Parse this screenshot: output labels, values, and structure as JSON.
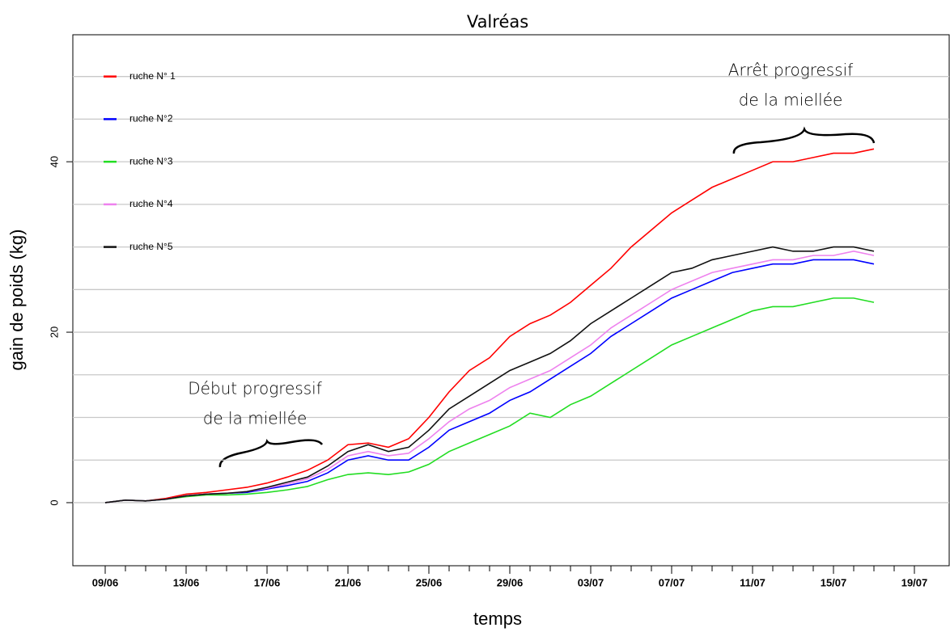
{
  "chart_data": {
    "type": "line",
    "title": "Valréas",
    "x_label": "temps",
    "y_label": "gain de poids (kg)",
    "x": [
      "09/06",
      "10/06",
      "11/06",
      "12/06",
      "13/06",
      "14/06",
      "15/06",
      "16/06",
      "17/06",
      "18/06",
      "19/06",
      "20/06",
      "21/06",
      "22/06",
      "23/06",
      "24/06",
      "25/06",
      "26/06",
      "27/06",
      "28/06",
      "29/06",
      "30/06",
      "01/07",
      "02/07",
      "03/07",
      "04/07",
      "05/07",
      "06/07",
      "07/07",
      "08/07",
      "09/07",
      "10/07",
      "11/07",
      "12/07",
      "13/07",
      "14/07",
      "15/07",
      "16/07",
      "17/07",
      "18/07",
      "19/07"
    ],
    "xticks": [
      "09/06",
      "13/06",
      "17/06",
      "21/06",
      "25/06",
      "29/06",
      "03/07",
      "07/07",
      "11/07",
      "15/07",
      "19/07"
    ],
    "ylim": [
      -7.4,
      54.9
    ],
    "yticks": [
      0,
      20,
      40
    ],
    "ygrid": [
      0,
      5,
      10,
      15,
      20,
      25,
      30,
      35,
      40,
      45,
      50
    ],
    "legend": "top-left",
    "series": [
      {
        "name": "ruche N° 1",
        "color": "#ff0000",
        "values": [
          0,
          0.3,
          0.2,
          0.5,
          1,
          1.2,
          1.5,
          1.8,
          2.3,
          3,
          3.8,
          5,
          6.8,
          7,
          6.5,
          7.5,
          10,
          13,
          15.5,
          17,
          19.5,
          21,
          22,
          23.5,
          25.5,
          27.5,
          30,
          32,
          34,
          35.5,
          37,
          38,
          39,
          40,
          40,
          40.5,
          41,
          41,
          41.5,
          null,
          null
        ]
      },
      {
        "name": "ruche N°2",
        "color": "#0000ff",
        "values": [
          0,
          0.3,
          0.2,
          0.4,
          0.8,
          1,
          1.1,
          1.2,
          1.6,
          2,
          2.5,
          3.5,
          5,
          5.5,
          5,
          5,
          6.5,
          8.5,
          9.5,
          10.5,
          12,
          13,
          14.5,
          16,
          17.5,
          19.5,
          21,
          22.5,
          24,
          25,
          26,
          27,
          27.5,
          28,
          28,
          28.5,
          28.5,
          28.5,
          28,
          null,
          null
        ]
      },
      {
        "name": "ruche N°3",
        "color": "#22dd22",
        "values": [
          0,
          0.3,
          0.2,
          0.4,
          0.7,
          0.9,
          0.9,
          1,
          1.2,
          1.5,
          1.9,
          2.7,
          3.3,
          3.5,
          3.3,
          3.6,
          4.5,
          6,
          7,
          8,
          9,
          10.5,
          10,
          11.5,
          12.5,
          14,
          15.5,
          17,
          18.5,
          19.5,
          20.5,
          21.5,
          22.5,
          23,
          23,
          23.5,
          24,
          24,
          23.5,
          null,
          null
        ]
      },
      {
        "name": "ruche N°4",
        "color": "#ee82ee",
        "values": [
          0,
          0.3,
          0.2,
          0.4,
          0.8,
          1,
          1.1,
          1.3,
          1.7,
          2.2,
          2.8,
          3.9,
          5.5,
          6,
          5.5,
          5.8,
          7.5,
          9.5,
          11,
          12,
          13.5,
          14.5,
          15.5,
          17,
          18.5,
          20.5,
          22,
          23.5,
          25,
          26,
          27,
          27.5,
          28,
          28.5,
          28.5,
          29,
          29,
          29.5,
          29,
          null,
          null
        ]
      },
      {
        "name": "ruche N°5",
        "color": "#111111",
        "values": [
          0,
          0.3,
          0.2,
          0.4,
          0.8,
          1,
          1.1,
          1.3,
          1.8,
          2.4,
          3,
          4.3,
          6,
          6.8,
          6,
          6.5,
          8.5,
          11,
          12.5,
          14,
          15.5,
          16.5,
          17.5,
          19,
          21,
          22.5,
          24,
          25.5,
          27,
          27.5,
          28.5,
          29,
          29.5,
          30,
          29.5,
          29.5,
          30,
          30,
          29.5,
          null,
          null
        ]
      }
    ],
    "annotations": [
      {
        "lines": [
          "Début progressif",
          "de la miellée"
        ]
      },
      {
        "lines": [
          "Arrêt progressif",
          "de la miellée"
        ]
      }
    ]
  }
}
